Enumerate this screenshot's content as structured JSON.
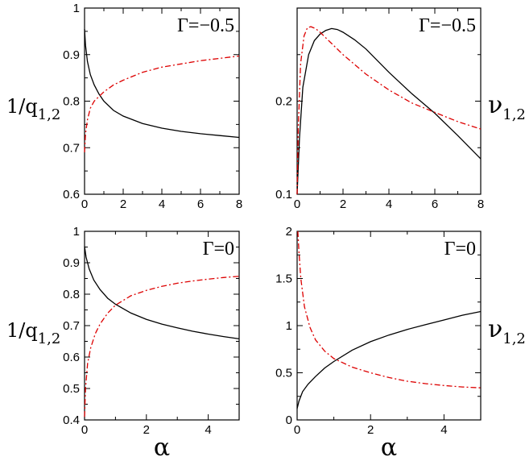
{
  "chart_data": [
    {
      "type": "line",
      "position": "top-left",
      "panel_label": "Γ=−0.5",
      "ylabel": "1/q",
      "ylabel_sub": "1,2",
      "xlabel": "",
      "xlim": [
        0,
        8
      ],
      "ylim": [
        0.6,
        1.0
      ],
      "xticks": [
        0,
        2,
        4,
        6,
        8
      ],
      "yticks": [
        0.6,
        0.7,
        0.8,
        0.9,
        1.0
      ],
      "ytick_labels": [
        "0.6",
        "0.7",
        "0.8",
        "0.9",
        "1"
      ],
      "series": [
        {
          "color": "#000000",
          "style": "solid",
          "x": [
            0,
            0.05,
            0.15,
            0.3,
            0.5,
            0.75,
            1,
            1.5,
            2,
            3,
            4,
            5,
            6,
            7,
            8
          ],
          "y": [
            0.955,
            0.92,
            0.885,
            0.857,
            0.835,
            0.815,
            0.8,
            0.78,
            0.768,
            0.752,
            0.742,
            0.735,
            0.73,
            0.726,
            0.722
          ]
        },
        {
          "color": "#dd0000",
          "style": "dashdot",
          "x": [
            0,
            0.05,
            0.15,
            0.3,
            0.5,
            0.75,
            1,
            1.5,
            2,
            3,
            4,
            5,
            6,
            7,
            8
          ],
          "y": [
            0.69,
            0.73,
            0.76,
            0.785,
            0.8,
            0.81,
            0.82,
            0.835,
            0.845,
            0.862,
            0.873,
            0.88,
            0.887,
            0.892,
            0.897
          ]
        }
      ]
    },
    {
      "type": "line",
      "position": "top-right",
      "panel_label": "Γ=−0.5",
      "ylabel": "ν",
      "ylabel_sub": "1,2",
      "xlabel": "",
      "xlim": [
        0,
        8
      ],
      "ylim": [
        0.1,
        0.3
      ],
      "xticks": [
        0,
        2,
        4,
        6,
        8
      ],
      "yticks": [
        0.1,
        0.2
      ],
      "ytick_labels": [
        "0.1",
        "0.2"
      ],
      "series": [
        {
          "color": "#000000",
          "style": "solid",
          "x": [
            0,
            0.1,
            0.25,
            0.5,
            0.75,
            1,
            1.25,
            1.5,
            1.75,
            2,
            2.5,
            3,
            4,
            5,
            6,
            7,
            8
          ],
          "y": [
            0.1,
            0.16,
            0.215,
            0.25,
            0.265,
            0.272,
            0.276,
            0.278,
            0.277,
            0.274,
            0.266,
            0.256,
            0.231,
            0.208,
            0.187,
            0.163,
            0.138
          ]
        },
        {
          "color": "#dd0000",
          "style": "dashdot",
          "x": [
            0,
            0.05,
            0.15,
            0.3,
            0.45,
            0.6,
            0.8,
            1,
            1.5,
            2,
            3,
            4,
            5,
            6,
            7,
            8
          ],
          "y": [
            0.1,
            0.17,
            0.24,
            0.27,
            0.279,
            0.28,
            0.278,
            0.274,
            0.262,
            0.25,
            0.229,
            0.212,
            0.198,
            0.188,
            0.178,
            0.17
          ]
        }
      ]
    },
    {
      "type": "line",
      "position": "bottom-left",
      "panel_label": "Γ=0",
      "ylabel": "1/q",
      "ylabel_sub": "1,2",
      "xlabel": "α",
      "xlim": [
        0,
        5
      ],
      "ylim": [
        0.4,
        1.0
      ],
      "xticks": [
        0,
        2,
        4
      ],
      "yticks": [
        0.4,
        0.5,
        0.6,
        0.7,
        0.8,
        0.9,
        1.0
      ],
      "ytick_labels": [
        "0.4",
        "0.5",
        "0.6",
        "0.7",
        "0.8",
        "0.9",
        "1"
      ],
      "series": [
        {
          "color": "#000000",
          "style": "solid",
          "x": [
            0,
            0.05,
            0.15,
            0.3,
            0.5,
            0.75,
            1,
            1.5,
            2,
            2.5,
            3,
            3.5,
            4,
            4.5,
            5
          ],
          "y": [
            0.952,
            0.918,
            0.88,
            0.845,
            0.815,
            0.787,
            0.768,
            0.74,
            0.72,
            0.705,
            0.693,
            0.682,
            0.673,
            0.665,
            0.658
          ]
        },
        {
          "color": "#dd0000",
          "style": "dashdot",
          "x": [
            0,
            0.03,
            0.1,
            0.2,
            0.35,
            0.5,
            0.75,
            1,
            1.5,
            2,
            2.5,
            3,
            3.5,
            4,
            4.5,
            5
          ],
          "y": [
            0.41,
            0.5,
            0.58,
            0.63,
            0.675,
            0.705,
            0.74,
            0.765,
            0.795,
            0.812,
            0.825,
            0.835,
            0.842,
            0.848,
            0.853,
            0.857
          ]
        }
      ]
    },
    {
      "type": "line",
      "position": "bottom-right",
      "panel_label": "Γ=0",
      "ylabel": "ν",
      "ylabel_sub": "1,2",
      "xlabel": "α",
      "xlim": [
        0,
        5
      ],
      "ylim": [
        0,
        2
      ],
      "xticks": [
        0,
        2,
        4
      ],
      "yticks": [
        0,
        0.5,
        1.0,
        1.5,
        2.0
      ],
      "ytick_labels": [
        "0",
        "0.5",
        "1",
        "1.5",
        "2"
      ],
      "series": [
        {
          "color": "#000000",
          "style": "solid",
          "x": [
            0,
            0.05,
            0.15,
            0.3,
            0.5,
            0.75,
            1,
            1.5,
            2,
            2.5,
            3,
            3.5,
            4,
            4.5,
            5
          ],
          "y": [
            0.12,
            0.2,
            0.3,
            0.38,
            0.46,
            0.55,
            0.62,
            0.74,
            0.83,
            0.9,
            0.96,
            1.01,
            1.06,
            1.11,
            1.15
          ]
        },
        {
          "color": "#dd0000",
          "style": "dashdot",
          "x": [
            0.02,
            0.05,
            0.1,
            0.2,
            0.35,
            0.5,
            0.75,
            1,
            1.5,
            2,
            2.5,
            3,
            3.5,
            4,
            4.5,
            5
          ],
          "y": [
            2.0,
            1.78,
            1.5,
            1.2,
            0.98,
            0.85,
            0.73,
            0.65,
            0.56,
            0.5,
            0.45,
            0.41,
            0.385,
            0.365,
            0.35,
            0.34
          ]
        }
      ]
    }
  ]
}
